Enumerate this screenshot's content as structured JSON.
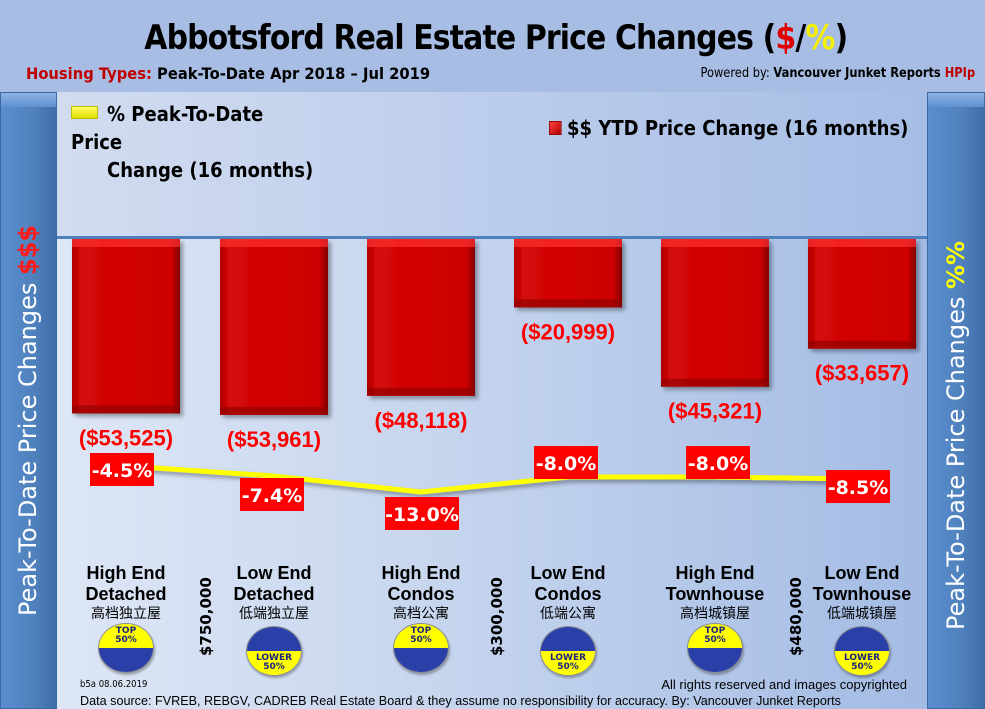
{
  "header": {
    "title_main": "Abbotsford Real Estate Price Changes (",
    "title_dollar": "$",
    "title_slash": "/",
    "title_pct": "%",
    "title_close": ")",
    "subtitle_label": "Housing Types:",
    "subtitle_range": " Peak-To-Date Apr 2018 – Jul 2019",
    "powered_prefix": "Powered by: ",
    "powered_brand": "Vancouver Junket Reports ",
    "powered_hpi": "HPIp"
  },
  "side_labels": {
    "left_text": "Peak-To-Date Price Changes ",
    "left_symbol": "$$$",
    "right_text": "Peak-To-Date  Price  Changes ",
    "right_symbol": "%%"
  },
  "colors": {
    "bar": "#cc0000",
    "line": "#ffff00",
    "pct_label_bg": "#ff0000",
    "usd_label": "#ff0000"
  },
  "chart_data": {
    "type": "bar",
    "title": "Abbotsford Real Estate Price Changes ($/%)",
    "categories": [
      "High End Detached",
      "Low End Detached",
      "High End Condos",
      "Low End Condos",
      "High End Townhouse",
      "Low End Townhouse"
    ],
    "categories_cn": [
      "高档独立屋",
      "低端独立屋",
      "高档公寓",
      "低端公寓",
      "高档城镇屋",
      "低端城镇屋"
    ],
    "series": [
      {
        "name": "$$ YTD Price Change (16 months)",
        "type": "bar",
        "values": [
          -53525,
          -53961,
          -48118,
          -20999,
          -45321,
          -33657
        ],
        "labels": [
          "($53,525)",
          "($53,961)",
          "($48,118)",
          "($20,999)",
          "($45,321)",
          "($33,657)"
        ]
      },
      {
        "name": "% Peak-To-Date Price Change (16 months)",
        "type": "line",
        "values": [
          -4.5,
          -7.4,
          -13.0,
          -8.0,
          -8.0,
          -8.5
        ],
        "labels": [
          "-4.5%",
          "-7.4%",
          "-13.0%",
          "-8.0%",
          "-8.0%",
          "-8.5%"
        ]
      }
    ],
    "legend": [
      {
        "name": "% Peak-To-Date Price",
        "name_line2": "Change (16 months)",
        "position": "top-left"
      },
      {
        "name": "$$ YTD Price Change (16 months)",
        "position": "top-right"
      }
    ],
    "xlabel": "",
    "ylabel_left": "Peak-To-Date Price Changes $$$",
    "ylabel_right": "Peak-To-Date  Price  Changes %%",
    "ylim": [
      -60000,
      0
    ],
    "grid": false
  },
  "segments": {
    "badges": [
      {
        "line1": "TOP",
        "line2": "50%",
        "kind": "top"
      },
      {
        "line1": "LOWER",
        "line2": "50%",
        "kind": "lower"
      },
      {
        "line1": "TOP",
        "line2": "50%",
        "kind": "top"
      },
      {
        "line1": "LOWER",
        "line2": "50%",
        "kind": "lower"
      },
      {
        "line1": "TOP",
        "line2": "50%",
        "kind": "top"
      },
      {
        "line1": "LOWER",
        "line2": "50%",
        "kind": "lower"
      }
    ],
    "thresholds": [
      "$750,000",
      "$300,000",
      "$480,000"
    ]
  },
  "footer": {
    "code": "b5a 08.06.2019",
    "rights": "All rights reserved and  images copyrighted",
    "source": "Data source: FVREB, REBGV, CADREB Real Estate Board & they assume no responsibility for accuracy. By: Vancouver Junket Reports"
  }
}
